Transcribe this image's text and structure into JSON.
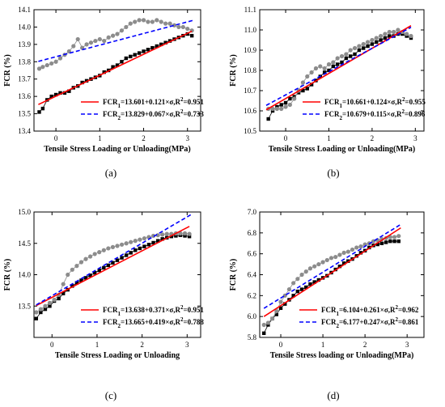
{
  "chart_data": [
    {
      "type": "scatter",
      "panel_label": "(a)",
      "xlabel": "Tensile Stress Loading or Unloading(MPa)",
      "ylabel": "FCR (%)",
      "xlim": [
        -0.5,
        3.3
      ],
      "ylim": [
        13.4,
        14.1
      ],
      "xticks": [
        "0",
        "1",
        "2",
        "3"
      ],
      "xtick_values": [
        0,
        1,
        2,
        3
      ],
      "yticks": [
        "13.4",
        "13.5",
        "13.6",
        "13.7",
        "13.8",
        "13.9",
        "14.0",
        "14.1"
      ],
      "ytick_values": [
        13.4,
        13.5,
        13.6,
        13.7,
        13.8,
        13.9,
        14.0,
        14.1
      ],
      "legend_position": "bottom-right",
      "series": [
        {
          "kind": "scatter",
          "marker": "square",
          "color": "#000000",
          "x": [
            -0.38,
            -0.3,
            -0.2,
            -0.1,
            0.0,
            0.1,
            0.2,
            0.3,
            0.4,
            0.5,
            0.6,
            0.7,
            0.8,
            0.9,
            1.0,
            1.1,
            1.2,
            1.3,
            1.4,
            1.5,
            1.6,
            1.7,
            1.8,
            1.9,
            2.0,
            2.1,
            2.2,
            2.3,
            2.4,
            2.5,
            2.6,
            2.7,
            2.8,
            2.9,
            3.0,
            3.1
          ],
          "y": [
            13.51,
            13.53,
            13.58,
            13.6,
            13.61,
            13.62,
            13.62,
            13.63,
            13.65,
            13.66,
            13.68,
            13.69,
            13.7,
            13.71,
            13.72,
            13.74,
            13.75,
            13.77,
            13.78,
            13.8,
            13.82,
            13.83,
            13.84,
            13.85,
            13.86,
            13.87,
            13.88,
            13.89,
            13.9,
            13.91,
            13.92,
            13.93,
            13.94,
            13.95,
            13.96,
            13.95
          ]
        },
        {
          "kind": "scatter",
          "marker": "circle",
          "color": "#8c8c8c",
          "x": [
            -0.38,
            -0.3,
            -0.2,
            -0.1,
            0.0,
            0.1,
            0.2,
            0.3,
            0.4,
            0.5,
            0.6,
            0.7,
            0.8,
            0.9,
            1.0,
            1.1,
            1.2,
            1.3,
            1.4,
            1.5,
            1.6,
            1.7,
            1.8,
            1.9,
            2.0,
            2.1,
            2.2,
            2.3,
            2.4,
            2.5,
            2.6,
            2.7,
            2.8,
            2.9,
            3.0,
            3.1
          ],
          "y": [
            13.76,
            13.77,
            13.78,
            13.79,
            13.8,
            13.82,
            13.84,
            13.86,
            13.89,
            13.93,
            13.88,
            13.9,
            13.91,
            13.92,
            13.93,
            13.92,
            13.94,
            13.95,
            13.96,
            13.98,
            14.0,
            14.02,
            14.03,
            14.04,
            14.04,
            14.03,
            14.03,
            14.04,
            14.03,
            14.02,
            14.02,
            14.01,
            14.0,
            14.0,
            13.99,
            13.98
          ]
        },
        {
          "kind": "line",
          "style": "solid",
          "color": "#ff0000",
          "name": "FCR1=13.601+0.121×σ,R²=0.951",
          "legend_parts": [
            {
              "t": "FCR"
            },
            {
              "t": "1",
              "sub": true
            },
            {
              "t": "=13.601+0.121×σ,R"
            },
            {
              "t": "2",
              "sup": true
            },
            {
              "t": "=0.951"
            }
          ],
          "x": [
            -0.4,
            3.1
          ],
          "y": [
            13.553,
            13.976
          ]
        },
        {
          "kind": "line",
          "style": "dashed",
          "color": "#0000ff",
          "name": "FCR2=13.829+0.067×σ,R²=0.733",
          "legend_parts": [
            {
              "t": "FCR"
            },
            {
              "t": "2",
              "sub": true
            },
            {
              "t": "=13.829+0.067×σ,R"
            },
            {
              "t": "2",
              "sup": true
            },
            {
              "t": "=0.733"
            }
          ],
          "x": [
            -0.4,
            3.15
          ],
          "y": [
            13.802,
            14.04
          ]
        }
      ]
    },
    {
      "type": "scatter",
      "panel_label": "(b)",
      "xlabel": "Tensile Stress Loading or Unloading(MPa)",
      "ylabel": "FCR (%)",
      "xlim": [
        -0.6,
        3.2
      ],
      "ylim": [
        10.5,
        11.1
      ],
      "xticks": [
        "0",
        "1",
        "2",
        "3"
      ],
      "xtick_values": [
        0,
        1,
        2,
        3
      ],
      "yticks": [
        "10.5",
        "10.6",
        "10.7",
        "10.8",
        "10.9",
        "11.0",
        "11.1"
      ],
      "ytick_values": [
        10.5,
        10.6,
        10.7,
        10.8,
        10.9,
        11.0,
        11.1
      ],
      "legend_position": "bottom-right",
      "series": [
        {
          "kind": "scatter",
          "marker": "square",
          "color": "#000000",
          "x": [
            -0.4,
            -0.3,
            -0.2,
            -0.1,
            0.0,
            0.1,
            0.2,
            0.3,
            0.4,
            0.5,
            0.6,
            0.7,
            0.8,
            0.9,
            1.0,
            1.1,
            1.2,
            1.3,
            1.4,
            1.5,
            1.6,
            1.7,
            1.8,
            1.9,
            2.0,
            2.1,
            2.2,
            2.3,
            2.4,
            2.5,
            2.6,
            2.7,
            2.8,
            2.9
          ],
          "y": [
            10.56,
            10.6,
            10.62,
            10.63,
            10.64,
            10.66,
            10.67,
            10.69,
            10.7,
            10.71,
            10.73,
            10.75,
            10.77,
            10.79,
            10.8,
            10.82,
            10.83,
            10.84,
            10.86,
            10.87,
            10.88,
            10.9,
            10.91,
            10.92,
            10.93,
            10.94,
            10.95,
            10.96,
            10.97,
            10.97,
            10.98,
            10.98,
            10.97,
            10.96
          ]
        },
        {
          "kind": "scatter",
          "marker": "circle",
          "color": "#8c8c8c",
          "x": [
            -0.4,
            -0.3,
            -0.2,
            -0.1,
            0.0,
            0.1,
            0.2,
            0.3,
            0.4,
            0.5,
            0.6,
            0.7,
            0.8,
            0.9,
            1.0,
            1.1,
            1.2,
            1.3,
            1.4,
            1.5,
            1.6,
            1.7,
            1.8,
            1.9,
            2.0,
            2.1,
            2.2,
            2.3,
            2.4,
            2.5,
            2.6,
            2.7,
            2.8,
            2.9
          ],
          "y": [
            10.61,
            10.61,
            10.61,
            10.61,
            10.62,
            10.63,
            10.66,
            10.7,
            10.74,
            10.77,
            10.79,
            10.81,
            10.82,
            10.81,
            10.83,
            10.84,
            10.86,
            10.87,
            10.88,
            10.9,
            10.91,
            10.92,
            10.93,
            10.94,
            10.95,
            10.96,
            10.97,
            10.98,
            10.99,
            10.99,
            11.0,
            10.99,
            10.98,
            10.97
          ]
        },
        {
          "kind": "line",
          "style": "solid",
          "color": "#ff0000",
          "name": "FCR1=10.661+0.124×σ,R²=0.955",
          "legend_parts": [
            {
              "t": "FCR"
            },
            {
              "t": "1",
              "sub": true
            },
            {
              "t": "=10.661+0.124×σ,R"
            },
            {
              "t": "2",
              "sup": true
            },
            {
              "t": "=0.955"
            }
          ],
          "x": [
            -0.45,
            2.9
          ],
          "y": [
            10.605,
            11.021
          ]
        },
        {
          "kind": "line",
          "style": "dashed",
          "color": "#0000ff",
          "name": "FCR2=10.679+0.115×σ,R²=0.896",
          "legend_parts": [
            {
              "t": "FCR"
            },
            {
              "t": "2",
              "sub": true
            },
            {
              "t": "=10.679+0.115×σ,R"
            },
            {
              "t": "2",
              "sup": true
            },
            {
              "t": "=0.896"
            }
          ],
          "x": [
            -0.45,
            2.9
          ],
          "y": [
            10.627,
            11.013
          ]
        }
      ]
    },
    {
      "type": "scatter",
      "panel_label": "(c)",
      "xlabel": "Tensile Stress Loading or Unloading",
      "ylabel": "FCR (%)",
      "xlim": [
        -0.4,
        3.3
      ],
      "ylim": [
        13.0,
        15.0
      ],
      "xticks": [
        "0",
        "1",
        "2",
        "3"
      ],
      "xtick_values": [
        0,
        1,
        2,
        3
      ],
      "yticks": [
        "13.5",
        "14.0",
        "14.5",
        "15.0"
      ],
      "ytick_values": [
        13.5,
        14.0,
        14.5,
        15.0
      ],
      "legend_position": "bottom-right",
      "series": [
        {
          "kind": "scatter",
          "marker": "square",
          "color": "#000000",
          "x": [
            -0.35,
            -0.25,
            -0.15,
            -0.05,
            0.05,
            0.15,
            0.25,
            0.35,
            0.45,
            0.55,
            0.65,
            0.75,
            0.85,
            0.95,
            1.05,
            1.15,
            1.25,
            1.35,
            1.45,
            1.55,
            1.65,
            1.75,
            1.85,
            1.95,
            2.05,
            2.15,
            2.25,
            2.35,
            2.45,
            2.55,
            2.65,
            2.75,
            2.85,
            2.95,
            3.05
          ],
          "y": [
            13.3,
            13.4,
            13.45,
            13.5,
            13.58,
            13.62,
            13.7,
            13.76,
            13.82,
            13.87,
            13.91,
            13.95,
            13.99,
            14.03,
            14.07,
            14.11,
            14.15,
            14.19,
            14.23,
            14.27,
            14.31,
            14.35,
            14.39,
            14.42,
            14.45,
            14.48,
            14.51,
            14.54,
            14.57,
            14.59,
            14.61,
            14.62,
            14.63,
            14.62,
            14.61
          ]
        },
        {
          "kind": "scatter",
          "marker": "circle",
          "color": "#8c8c8c",
          "x": [
            -0.35,
            -0.25,
            -0.15,
            -0.05,
            0.05,
            0.15,
            0.25,
            0.35,
            0.45,
            0.55,
            0.65,
            0.75,
            0.85,
            0.95,
            1.05,
            1.15,
            1.25,
            1.35,
            1.45,
            1.55,
            1.65,
            1.75,
            1.85,
            1.95,
            2.05,
            2.15,
            2.25,
            2.35,
            2.45,
            2.55,
            2.65,
            2.75,
            2.85,
            2.95,
            3.05
          ],
          "y": [
            13.4,
            13.45,
            13.5,
            13.55,
            13.6,
            13.68,
            13.85,
            14.0,
            14.08,
            14.14,
            14.2,
            14.25,
            14.29,
            14.33,
            14.36,
            14.39,
            14.42,
            14.44,
            14.46,
            14.48,
            14.5,
            14.52,
            14.54,
            14.56,
            14.58,
            14.6,
            14.62,
            14.63,
            14.64,
            14.65,
            14.65,
            14.66,
            14.66,
            14.66,
            14.65
          ]
        },
        {
          "kind": "line",
          "style": "solid",
          "color": "#ff0000",
          "name": "FCR1=13.638+0.371×σ,R²=0.951",
          "legend_parts": [
            {
              "t": "FCR"
            },
            {
              "t": "1",
              "sub": true
            },
            {
              "t": "=13.638+0.371×σ,R"
            },
            {
              "t": "2",
              "sup": true
            },
            {
              "t": "=0.951"
            }
          ],
          "x": [
            -0.35,
            3.05
          ],
          "y": [
            13.508,
            14.77
          ]
        },
        {
          "kind": "line",
          "style": "dashed",
          "color": "#0000ff",
          "name": "FCR2=13.665+0.419×σ,R²=0.788",
          "legend_parts": [
            {
              "t": "FCR"
            },
            {
              "t": "2",
              "sub": true
            },
            {
              "t": "=13.665+0.419×σ,R"
            },
            {
              "t": "2",
              "sup": true
            },
            {
              "t": "=0.788"
            }
          ],
          "x": [
            -0.35,
            3.1
          ],
          "y": [
            13.518,
            14.964
          ]
        }
      ]
    },
    {
      "type": "scatter",
      "panel_label": "(d)",
      "xlabel": "Tensile Stress loading or Unloading(MPa)",
      "ylabel": "FCR (%)",
      "xlim": [
        -0.5,
        3.4
      ],
      "ylim": [
        5.8,
        7.0
      ],
      "xticks": [
        "0",
        "1",
        "2",
        "3"
      ],
      "xtick_values": [
        0,
        1,
        2,
        3
      ],
      "yticks": [
        "5.8",
        "6.0",
        "6.2",
        "6.4",
        "6.6",
        "6.8",
        "7.0"
      ],
      "ytick_values": [
        5.8,
        6.0,
        6.2,
        6.4,
        6.6,
        6.8,
        7.0
      ],
      "legend_position": "bottom-right",
      "series": [
        {
          "kind": "scatter",
          "marker": "square",
          "color": "#000000",
          "x": [
            -0.4,
            -0.3,
            -0.2,
            -0.1,
            0.0,
            0.1,
            0.2,
            0.3,
            0.4,
            0.5,
            0.6,
            0.7,
            0.8,
            0.9,
            1.0,
            1.1,
            1.2,
            1.3,
            1.4,
            1.5,
            1.6,
            1.7,
            1.8,
            1.9,
            2.0,
            2.1,
            2.2,
            2.3,
            2.4,
            2.5,
            2.6,
            2.7,
            2.8
          ],
          "y": [
            5.84,
            5.92,
            5.98,
            6.02,
            6.08,
            6.12,
            6.16,
            6.2,
            6.24,
            6.26,
            6.28,
            6.31,
            6.33,
            6.35,
            6.37,
            6.39,
            6.42,
            6.45,
            6.48,
            6.51,
            6.53,
            6.55,
            6.58,
            6.61,
            6.63,
            6.66,
            6.68,
            6.69,
            6.7,
            6.71,
            6.72,
            6.72,
            6.72
          ]
        },
        {
          "kind": "scatter",
          "marker": "circle",
          "color": "#8c8c8c",
          "x": [
            -0.4,
            -0.3,
            -0.2,
            -0.1,
            0.0,
            0.1,
            0.2,
            0.3,
            0.4,
            0.5,
            0.6,
            0.7,
            0.8,
            0.9,
            1.0,
            1.1,
            1.2,
            1.3,
            1.4,
            1.5,
            1.6,
            1.7,
            1.8,
            1.9,
            2.0,
            2.1,
            2.2,
            2.3,
            2.4,
            2.5,
            2.6,
            2.7,
            2.8
          ],
          "y": [
            5.92,
            5.94,
            5.98,
            6.05,
            6.14,
            6.2,
            6.26,
            6.32,
            6.36,
            6.4,
            6.43,
            6.46,
            6.48,
            6.5,
            6.52,
            6.54,
            6.56,
            6.57,
            6.59,
            6.61,
            6.62,
            6.64,
            6.66,
            6.67,
            6.69,
            6.7,
            6.72,
            6.73,
            6.74,
            6.75,
            6.76,
            6.76,
            6.77
          ]
        },
        {
          "kind": "line",
          "style": "solid",
          "color": "#ff0000",
          "name": "FCR1=6.104+0.261×σ,R²=0.962",
          "legend_parts": [
            {
              "t": "FCR"
            },
            {
              "t": "1",
              "sub": true
            },
            {
              "t": "=6.104+0.261×σ,R"
            },
            {
              "t": "2",
              "sup": true
            },
            {
              "t": "=0.962"
            }
          ],
          "x": [
            -0.4,
            2.85
          ],
          "y": [
            6.0,
            6.848
          ]
        },
        {
          "kind": "line",
          "style": "dashed",
          "color": "#0000ff",
          "name": "FCR2=6.177+0.247×σ,R²=0.861",
          "legend_parts": [
            {
              "t": "FCR"
            },
            {
              "t": "2",
              "sub": true
            },
            {
              "t": "=6.177+0.247×σ,R"
            },
            {
              "t": "2",
              "sup": true
            },
            {
              "t": "=0.861"
            }
          ],
          "x": [
            -0.4,
            2.85
          ],
          "y": [
            6.078,
            6.881
          ]
        }
      ]
    }
  ]
}
